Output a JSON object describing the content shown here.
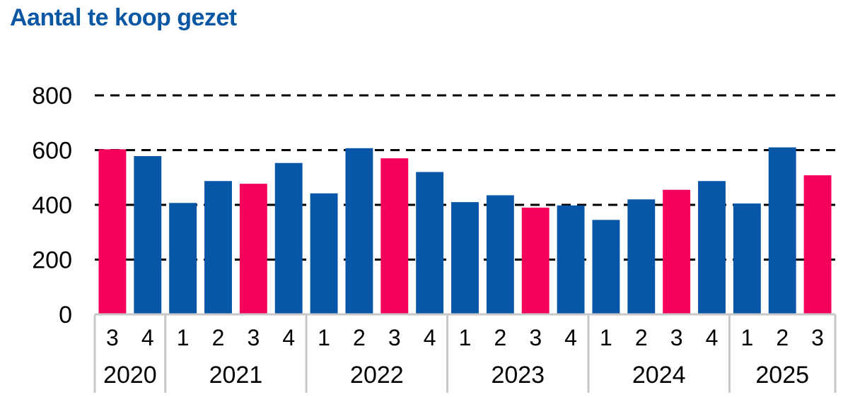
{
  "chart_data": {
    "type": "bar",
    "title": "Aantal te koop gezet",
    "xlabel": "",
    "ylabel": "",
    "ylim": [
      0,
      800
    ],
    "yticks": [
      0,
      200,
      400,
      600,
      800
    ],
    "grid": true,
    "legend": "none",
    "years": [
      {
        "label": "2020",
        "quarters": 2
      },
      {
        "label": "2021",
        "quarters": 4
      },
      {
        "label": "2022",
        "quarters": 4
      },
      {
        "label": "2023",
        "quarters": 4
      },
      {
        "label": "2024",
        "quarters": 4
      },
      {
        "label": "2025",
        "quarters": 3
      }
    ],
    "categories": [
      "3",
      "4",
      "1",
      "2",
      "3",
      "4",
      "1",
      "2",
      "3",
      "4",
      "1",
      "2",
      "3",
      "4",
      "1",
      "2",
      "3",
      "4",
      "1",
      "2",
      "3"
    ],
    "values": [
      603,
      578,
      407,
      487,
      477,
      553,
      442,
      607,
      570,
      520,
      410,
      435,
      390,
      398,
      345,
      420,
      455,
      487,
      405,
      610,
      508
    ],
    "highlight_quarter": "3"
  },
  "colors": {
    "title": "#0b57a4",
    "bar": "#0756a8",
    "highlight": "#f5005a",
    "grid": "#000000",
    "axis": "#c8c8c8"
  }
}
